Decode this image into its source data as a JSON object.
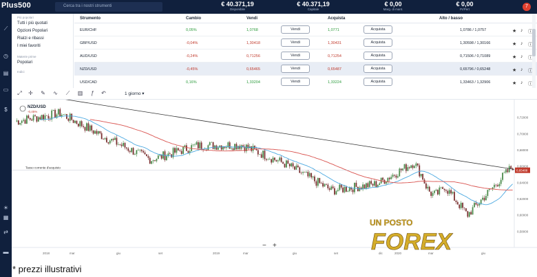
{
  "app": {
    "logo": "Plus500"
  },
  "search": {
    "placeholder": "Cerca tra i nostri strumenti"
  },
  "header_stats": [
    {
      "value": "€ 40.371,19",
      "label": "Disponibile"
    },
    {
      "value": "€ 40.371,19",
      "label": "Capitale"
    },
    {
      "value": "€ 0,00",
      "label": "Marg. di mant."
    },
    {
      "value": "€ 0,00",
      "label": "Pr/Pert"
    }
  ],
  "avatar": {
    "initial": "7"
  },
  "sidebar": {
    "section_1": "Più popolari",
    "items_1": [
      "Tutti i più quotati",
      "Opzioni Popolari",
      "Rialzi e ribassi",
      "I miei favoriti"
    ],
    "section_2": "Materie prime",
    "items_2": [
      "Popolari"
    ],
    "section_3": "Indici"
  },
  "table": {
    "headers": {
      "instrument": "Strumento",
      "change": "Cambio",
      "sell": "Vendi",
      "buy": "Acquista",
      "highlow": "Alto / basso"
    },
    "sell_label": "Vendi",
    "buy_label": "Acquista",
    "rows": [
      {
        "name": "EUR/CHF",
        "change": "0,05%",
        "dir": "up",
        "sell": "1,0768",
        "buy": "1,0771",
        "hl": "1,0786 / 1,0757"
      },
      {
        "name": "GBP/USD",
        "change": "-0,04%",
        "dir": "down",
        "sell": "1,30418",
        "buy": "1,30431",
        "hl": "1,30598 / 1,30166"
      },
      {
        "name": "AUD/USD",
        "change": "-0,24%",
        "dir": "down",
        "sell": "0,71256",
        "buy": "0,71254",
        "hl": "0,71506 / 0,71089"
      },
      {
        "name": "NZD/USD",
        "change": "-0,45%",
        "dir": "down",
        "sell": "0,65465",
        "buy": "0,65487",
        "hl": "0,65796 / 0,65248"
      },
      {
        "name": "USD/CAD",
        "change": "0,16%",
        "dir": "up",
        "sell": "1,33204",
        "buy": "1,33224",
        "hl": "1,33463 / 1,32906"
      }
    ]
  },
  "chart_toolbar": {
    "period": "1 giorno"
  },
  "chart": {
    "symbol": "NZD/USD",
    "symbol_change": "-0,45%",
    "reference_label": "Tasso corrente d'acquisto",
    "current_price": "0,65488",
    "x_labels": [
      "2018",
      "mar",
      "giu",
      "set",
      "2019",
      "mar",
      "giu",
      "set",
      "dic",
      "2020",
      "mar",
      "giu"
    ],
    "y_labels": [
      "0,72000",
      "0,70000",
      "0,68000",
      "0,66000",
      "0,64000",
      "0,62000",
      "0,60000",
      "0,58000"
    ],
    "zoom_out": "−",
    "zoom_in": "+",
    "watermark": "UN POSTO FOREX",
    "colors": {
      "candle_up": "#4a8a4a",
      "candle_down": "#7a3030",
      "ma_fast": "#4aa8e0",
      "ma_slow": "#d9534f",
      "trendline": "#333333"
    }
  },
  "chart_data": {
    "type": "line",
    "title": "NZD/USD",
    "x": [
      "2018",
      "mar",
      "giu",
      "set",
      "2019",
      "mar",
      "giu",
      "set",
      "dic",
      "2020",
      "mar",
      "giu"
    ],
    "series": [
      {
        "values": [
          0.715,
          0.725,
          0.695,
          0.668,
          0.685,
          0.686,
          0.662,
          0.63,
          0.638,
          0.67,
          0.6,
          0.66
        ]
      }
    ],
    "ylim": [
      0.56,
      0.74
    ]
  },
  "footnote": "* prezzi illustrativi"
}
